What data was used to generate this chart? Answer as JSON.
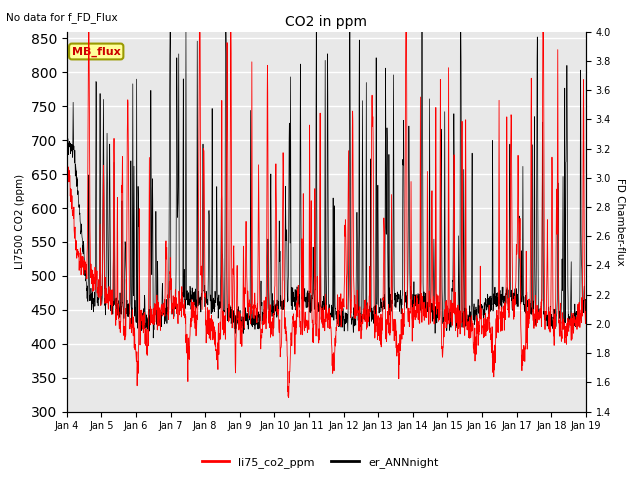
{
  "title": "CO2 in ppm",
  "suptitle": "No data for f_FD_Flux",
  "ylabel_left": "LI7500 CO2 (ppm)",
  "ylabel_right": "FD Chamber-flux",
  "ylim_left": [
    300,
    860
  ],
  "ylim_right": [
    1.4,
    4.0
  ],
  "yticks_left": [
    300,
    350,
    400,
    450,
    500,
    550,
    600,
    650,
    700,
    750,
    800,
    850
  ],
  "yticks_right": [
    1.4,
    1.6,
    1.8,
    2.0,
    2.2,
    2.4,
    2.6,
    2.8,
    3.0,
    3.2,
    3.4,
    3.6,
    3.8,
    4.0
  ],
  "xticklabels": [
    "Jan 4",
    "Jan 5",
    "Jan 6",
    "Jan 7",
    "Jan 8",
    "Jan 9",
    "Jan 10",
    "Jan 11",
    "Jan 12",
    "Jan 13",
    "Jan 14",
    "Jan 15",
    "Jan 16",
    "Jan 17",
    "Jan 18",
    "Jan 19"
  ],
  "legend_label_red": "li75_co2_ppm",
  "legend_label_black": "er_ANNnight",
  "inset_label": "MB_flux",
  "plot_bg_color": "#e8e8e8",
  "grid_color": "#ffffff",
  "line_color_red": "#ff0000",
  "line_color_black": "#000000",
  "fig_width": 6.4,
  "fig_height": 4.8,
  "dpi": 100
}
